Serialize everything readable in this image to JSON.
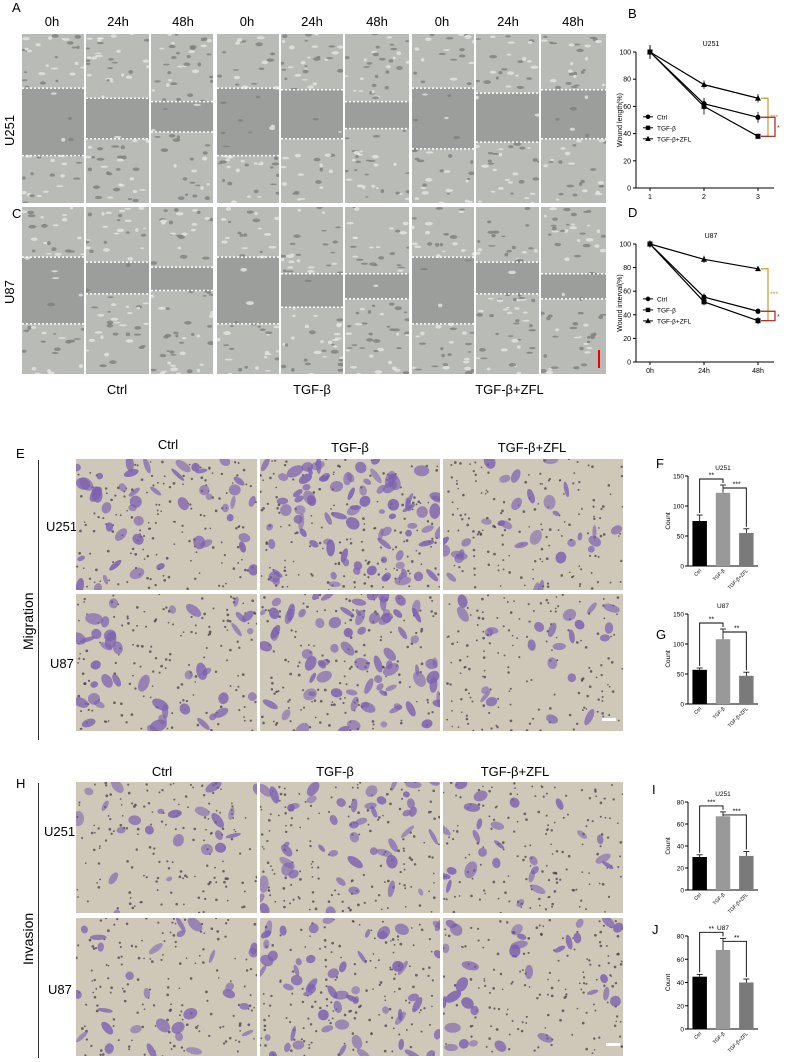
{
  "letters": {
    "A": "A",
    "B": "B",
    "C": "C",
    "D": "D",
    "E": "E",
    "F": "F",
    "G": "G",
    "H": "H",
    "I": "I",
    "J": "J"
  },
  "wound": {
    "time_headers": [
      "0h",
      "24h",
      "48h",
      "0h",
      "24h",
      "48h",
      "0h",
      "24h",
      "48h"
    ],
    "row_labels": [
      "U251",
      "U87"
    ],
    "group_labels": [
      "Ctrl",
      "TGF-β",
      "TGF-β+ZFL"
    ]
  },
  "transwell": {
    "group_labels": [
      "Ctrl",
      "TGF-β",
      "TGF-β+ZFL"
    ],
    "row_labels": [
      "U251",
      "U87"
    ],
    "section_migration": "Migration",
    "section_invasion": "Invasion"
  },
  "colors": {
    "stain_purple": "#7b5fb0",
    "field_bg": "#cfc8b8",
    "wound_bg": "#9a9a9a",
    "bar_ctrl": "#000000",
    "bar_tgf": "#999999",
    "bar_zfl": "#7a7a7a",
    "sig_gold": "#c99a2e",
    "sig_red": "#b01a1a"
  },
  "chart_data": [
    {
      "id": "B",
      "type": "line",
      "title": "U251",
      "ylabel": "Wound length(%)",
      "x": [
        "1",
        "2",
        "3"
      ],
      "xticks": [
        "1",
        "2",
        "3"
      ],
      "ylim": [
        0,
        100
      ],
      "yticks": [
        0,
        20,
        40,
        60,
        80,
        100
      ],
      "series": [
        {
          "name": "Ctrl",
          "marker": "circle",
          "values": [
            100,
            62,
            52
          ],
          "err": [
            5,
            4,
            4
          ]
        },
        {
          "name": "TGF-β",
          "marker": "square",
          "values": [
            100,
            60,
            38
          ],
          "err": [
            5,
            6,
            2
          ]
        },
        {
          "name": "TGF-β+ZFL",
          "marker": "triangle",
          "values": [
            100,
            76,
            66
          ],
          "err": [
            5,
            3,
            3
          ]
        }
      ],
      "sig": [
        {
          "label": "***",
          "color": "gold"
        },
        {
          "label": "*",
          "color": "red"
        }
      ],
      "legend": "left"
    },
    {
      "id": "D",
      "type": "line",
      "title": "U87",
      "ylabel": "Wound interval(%)",
      "x": [
        "0h",
        "24h",
        "48h"
      ],
      "xticks": [
        "0h",
        "24h",
        "48h"
      ],
      "ylim": [
        0,
        100
      ],
      "yticks": [
        0,
        20,
        40,
        60,
        80,
        100
      ],
      "series": [
        {
          "name": "Ctrl",
          "marker": "circle",
          "values": [
            100,
            55,
            43
          ],
          "err": [
            3,
            3,
            2
          ]
        },
        {
          "name": "TGF-β",
          "marker": "square",
          "values": [
            100,
            51,
            35
          ],
          "err": [
            3,
            3,
            3
          ]
        },
        {
          "name": "TGF-β+ZFL",
          "marker": "triangle",
          "values": [
            100,
            87,
            79
          ],
          "err": [
            3,
            3,
            2
          ]
        }
      ],
      "sig": [
        {
          "label": "***",
          "color": "gold"
        },
        {
          "label": "*",
          "color": "red"
        }
      ],
      "legend": "left"
    },
    {
      "id": "F",
      "type": "bar",
      "title": "U251",
      "ylabel": "Count",
      "ylim": [
        0,
        150
      ],
      "yticks": [
        0,
        50,
        100,
        150
      ],
      "categories": [
        "Ctrl",
        "TGF-β",
        "TGF-β+ZFL"
      ],
      "values": [
        75,
        122,
        55
      ],
      "err": [
        10,
        13,
        7
      ],
      "sig": [
        "**",
        "***"
      ]
    },
    {
      "id": "G",
      "type": "bar",
      "title": "U87",
      "ylabel": "Count",
      "ylim": [
        0,
        150
      ],
      "yticks": [
        0,
        50,
        100,
        150
      ],
      "categories": [
        "Ctrl",
        "TGF-β",
        "TGF-β+ZFL"
      ],
      "values": [
        57,
        108,
        47
      ],
      "err": [
        3,
        17,
        6
      ],
      "sig": [
        "**",
        "**"
      ]
    },
    {
      "id": "I",
      "type": "bar",
      "title": "U251",
      "ylabel": "Count",
      "ylim": [
        0,
        80
      ],
      "yticks": [
        0,
        20,
        40,
        60,
        80
      ],
      "categories": [
        "Ctrl",
        "TGF-β",
        "TGF-β+ZFL"
      ],
      "values": [
        30,
        67,
        31
      ],
      "err": [
        2,
        4,
        4
      ],
      "sig": [
        "***",
        "***"
      ]
    },
    {
      "id": "J",
      "type": "bar",
      "title": "U87",
      "ylabel": "Count",
      "ylim": [
        0,
        80
      ],
      "yticks": [
        0,
        20,
        40,
        60,
        80
      ],
      "categories": [
        "Ctrl",
        "TGF-β",
        "TGF-β+ZFL"
      ],
      "values": [
        45,
        68,
        40
      ],
      "err": [
        2,
        10,
        3
      ],
      "sig": [
        "**",
        "**"
      ]
    }
  ]
}
